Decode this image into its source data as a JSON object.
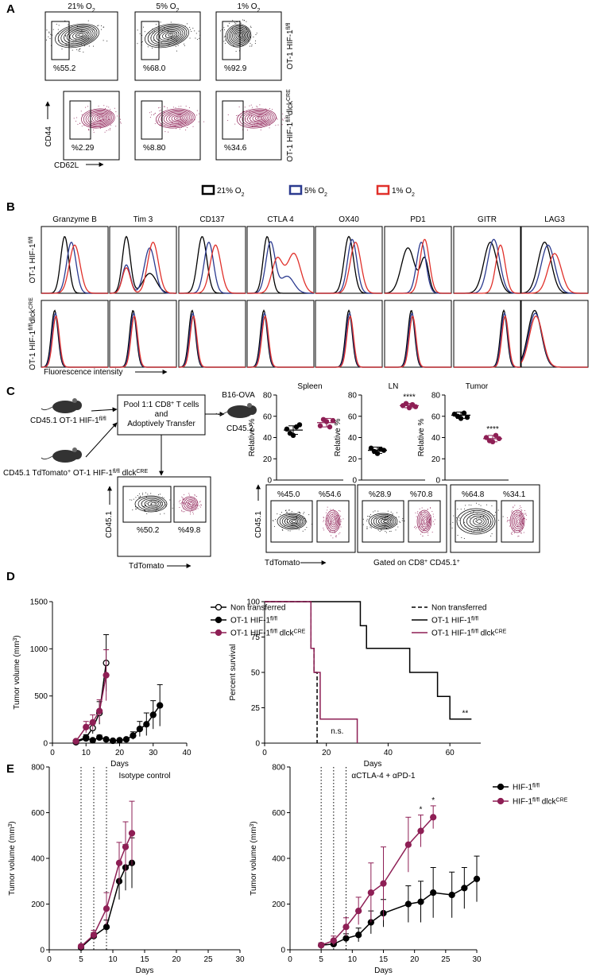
{
  "panels": {
    "A": {
      "label": "A",
      "columns": [
        [
          "21% O",
          {
            "sub": "2"
          }
        ],
        [
          "5% O",
          {
            "sub": "2"
          }
        ],
        [
          "1% O",
          {
            "sub": "2"
          }
        ]
      ],
      "rows": [
        [
          "OT-1 HIF-1",
          {
            "sup": "fl/fl"
          }
        ],
        [
          "OT-1 HIF-1",
          {
            "sup": "fl/fl"
          },
          "dlck",
          {
            "sup": "CRE"
          }
        ]
      ],
      "percents": [
        [
          "%55.2",
          "%68.0",
          "%92.9"
        ],
        [
          "%2.29",
          "%8.80",
          "%34.6"
        ]
      ],
      "y_axis": "CD44",
      "x_axis": "CD62L"
    },
    "B": {
      "label": "B",
      "legend": [
        {
          "name": [
            "21% O",
            {
              "sub": "2"
            }
          ],
          "color": "#000000"
        },
        {
          "name": [
            "5% O",
            {
              "sub": "2"
            }
          ],
          "color": "#2b3a8f"
        },
        {
          "name": [
            "1% O",
            {
              "sub": "2"
            }
          ],
          "color": "#e0302a"
        }
      ],
      "markers": [
        "Granzyme B",
        "Tim 3",
        "CD137",
        "CTLA 4",
        "OX40",
        "PD1",
        "GITR",
        "LAG3"
      ],
      "rows": [
        [
          "OT-1 HIF-1",
          {
            "sup": "fl/fl"
          }
        ],
        [
          "OT-1 HIF-1",
          {
            "sup": "fl/fl"
          },
          "dlck",
          {
            "sup": "CRE"
          }
        ]
      ],
      "x_axis": "Fluorescence intensity"
    },
    "C": {
      "label": "C",
      "donor1": [
        "CD45.1  OT-1 HIF-1",
        {
          "sup": "fl/fl"
        }
      ],
      "donor2": [
        "CD45.1 TdTomato",
        {
          "sup": "+"
        },
        " OT-1 HIF-1",
        {
          "sup": "fl/fl"
        },
        " dlck",
        {
          "sup": "CRE"
        }
      ],
      "pool": [
        [
          "Pool 1:1 CD8",
          {
            "sup": "+"
          },
          " T cells"
        ],
        "and",
        "Adoptively Transfer"
      ],
      "host": [
        "B16-OVA",
        "CD45.2"
      ],
      "input_percents": [
        "%50.2",
        "%49.8"
      ],
      "y_axis": "CD45.1",
      "x_axis": "TdTomato",
      "output_percents": [
        [
          "%45.0",
          "%54.6"
        ],
        [
          "%28.9",
          "%70.8"
        ],
        [
          "%64.8",
          "%34.1"
        ]
      ],
      "gate": [
        "Gated on CD8",
        {
          "sup": "+"
        },
        " CD45.1",
        {
          "sup": "+"
        }
      ]
    },
    "D": {
      "label": "D"
    },
    "E": {
      "label": "E"
    }
  },
  "chart_data": [
    {
      "type": "strip",
      "title": "Spleen",
      "ylabel": "Relative %",
      "ylim": [
        0,
        80
      ],
      "yticks": [
        0,
        20,
        40,
        60,
        80
      ],
      "series": [
        {
          "color": "#000000",
          "values": [
            48,
            44,
            42,
            50,
            52
          ],
          "mean": 47,
          "error": 4
        },
        {
          "color": "#8e1f55",
          "values": [
            51,
            57,
            55,
            50,
            56
          ],
          "mean": 54,
          "error": 4
        }
      ]
    },
    {
      "type": "strip",
      "title": "LN",
      "ylabel": "Relative %",
      "ylim": [
        0,
        80
      ],
      "yticks": [
        0,
        20,
        40,
        60,
        80
      ],
      "series": [
        {
          "color": "#000000",
          "values": [
            30,
            27,
            25,
            29,
            28
          ],
          "mean": 28,
          "error": 3
        },
        {
          "color": "#8e1f55",
          "values": [
            70,
            72,
            68,
            71,
            69
          ],
          "mean": 70,
          "error": 2
        }
      ],
      "annotations": [
        "****"
      ]
    },
    {
      "type": "strip",
      "title": "Tumor",
      "ylabel": "Relative %",
      "ylim": [
        0,
        80
      ],
      "yticks": [
        0,
        20,
        40,
        60,
        80
      ],
      "series": [
        {
          "color": "#000000",
          "values": [
            62,
            60,
            58,
            63,
            59
          ],
          "mean": 61,
          "error": 3
        },
        {
          "color": "#8e1f55",
          "values": [
            40,
            37,
            36,
            42,
            39
          ],
          "mean": 39,
          "error": 3
        }
      ],
      "annotations": [
        "****"
      ]
    },
    {
      "type": "line",
      "xlabel": "Days",
      "ylabel": [
        "Tumor volume (mm",
        {
          "sup": "3"
        },
        ")"
      ],
      "xlim": [
        0,
        40
      ],
      "xticks": [
        0,
        10,
        20,
        30,
        40
      ],
      "ylim": [
        0,
        1500
      ],
      "yticks": [
        0,
        500,
        1000,
        1500
      ],
      "series": [
        {
          "name": "Non transferred",
          "color": "#000000",
          "marker": "open",
          "x": [
            7,
            10,
            12,
            14,
            16
          ],
          "values": [
            20,
            60,
            160,
            320,
            850
          ],
          "errors": [
            10,
            30,
            60,
            120,
            300
          ]
        },
        {
          "name": [
            "OT-1 HIF-1",
            {
              "sup": "fl/fl"
            }
          ],
          "color": "#000000",
          "marker": "filled",
          "x": [
            7,
            10,
            12,
            14,
            16,
            18,
            20,
            22,
            24,
            26,
            28,
            30,
            32
          ],
          "values": [
            10,
            50,
            30,
            60,
            40,
            25,
            30,
            40,
            80,
            150,
            200,
            300,
            400
          ],
          "errors": [
            5,
            20,
            15,
            25,
            15,
            10,
            10,
            15,
            40,
            80,
            120,
            150,
            220
          ]
        },
        {
          "name": [
            "OT-1 HIF-1",
            {
              "sup": "fl/fl"
            },
            " dlck",
            {
              "sup": "CRE"
            }
          ],
          "color": "#8e1f55",
          "marker": "filled",
          "x": [
            7,
            10,
            12,
            14,
            16
          ],
          "values": [
            20,
            170,
            220,
            340,
            720
          ],
          "errors": [
            10,
            60,
            80,
            120,
            270
          ]
        }
      ]
    },
    {
      "type": "step",
      "xlabel": "Days",
      "ylabel": "Percent survival",
      "xlim": [
        0,
        70
      ],
      "xticks": [
        0,
        20,
        40,
        60
      ],
      "ylim": [
        0,
        100
      ],
      "yticks": [
        0,
        25,
        50,
        75,
        100
      ],
      "series": [
        {
          "name": "Non transferred",
          "color": "#000000",
          "style": "dashed",
          "x": [
            0,
            15,
            16,
            17
          ],
          "values": [
            100,
            67,
            50,
            0
          ]
        },
        {
          "name": [
            "OT-1 HIF-1",
            {
              "sup": "fl/fl"
            }
          ],
          "color": "#000000",
          "style": "solid",
          "x": [
            0,
            31,
            33,
            47,
            56,
            60,
            67
          ],
          "values": [
            100,
            83,
            67,
            50,
            33,
            17,
            17
          ]
        },
        {
          "name": [
            "OT-1 HIF-1",
            {
              "sup": "fl/fl"
            },
            " dlck",
            {
              "sup": "CRE"
            }
          ],
          "color": "#8e1f55",
          "style": "solid",
          "x": [
            0,
            15,
            16,
            18,
            30
          ],
          "values": [
            100,
            67,
            50,
            17,
            0
          ]
        }
      ],
      "annotations": [
        "n.s.",
        "**"
      ]
    },
    {
      "type": "line",
      "title": "Isotype control",
      "xlabel": "Days",
      "ylabel": [
        "Tumor volume (mm",
        {
          "sup": "3"
        },
        ")"
      ],
      "xlim": [
        0,
        30
      ],
      "xticks": [
        0,
        5,
        10,
        15,
        20,
        25,
        30
      ],
      "ylim": [
        0,
        800
      ],
      "yticks": [
        0,
        200,
        400,
        600,
        800
      ],
      "vlines": [
        5,
        7,
        9
      ],
      "series": [
        {
          "color": "#000000",
          "marker": "filled",
          "x": [
            5,
            7,
            9,
            11,
            12,
            13
          ],
          "values": [
            10,
            60,
            100,
            300,
            360,
            380
          ],
          "errors": [
            5,
            15,
            30,
            80,
            100,
            110
          ]
        },
        {
          "color": "#8e1f55",
          "marker": "filled",
          "x": [
            5,
            7,
            9,
            11,
            12,
            13
          ],
          "values": [
            15,
            65,
            180,
            380,
            450,
            510
          ],
          "errors": [
            8,
            20,
            70,
            90,
            110,
            140
          ]
        }
      ]
    },
    {
      "type": "line",
      "title": "αCTLA-4 + αPD-1",
      "xlabel": "Days",
      "ylabel": [
        "Tumor volume (mm",
        {
          "sup": "3"
        },
        ")"
      ],
      "xlim": [
        0,
        30
      ],
      "xticks": [
        0,
        5,
        10,
        15,
        20,
        25,
        30
      ],
      "ylim": [
        0,
        800
      ],
      "yticks": [
        0,
        200,
        400,
        600,
        800
      ],
      "vlines": [
        5,
        7,
        9
      ],
      "series": [
        {
          "name": [
            "HIF-1",
            {
              "sup": "fl/fl"
            }
          ],
          "color": "#000000",
          "marker": "filled",
          "x": [
            5,
            7,
            9,
            11,
            13,
            15,
            19,
            21,
            23,
            26,
            28,
            30
          ],
          "values": [
            20,
            25,
            50,
            65,
            120,
            160,
            200,
            210,
            250,
            240,
            270,
            310
          ],
          "errors": [
            10,
            10,
            20,
            30,
            50,
            60,
            80,
            90,
            110,
            100,
            90,
            100
          ]
        },
        {
          "name": [
            "HIF-1",
            {
              "sup": "fl/fl"
            },
            " dlck",
            {
              "sup": "CRE"
            }
          ],
          "color": "#8e1f55",
          "marker": "filled",
          "x": [
            5,
            7,
            9,
            11,
            13,
            15,
            19,
            21,
            23
          ],
          "values": [
            20,
            40,
            100,
            170,
            250,
            290,
            460,
            520,
            580
          ],
          "errors": [
            10,
            20,
            40,
            60,
            130,
            160,
            120,
            70,
            50
          ]
        }
      ],
      "annotations": [
        "*",
        "*"
      ]
    }
  ]
}
